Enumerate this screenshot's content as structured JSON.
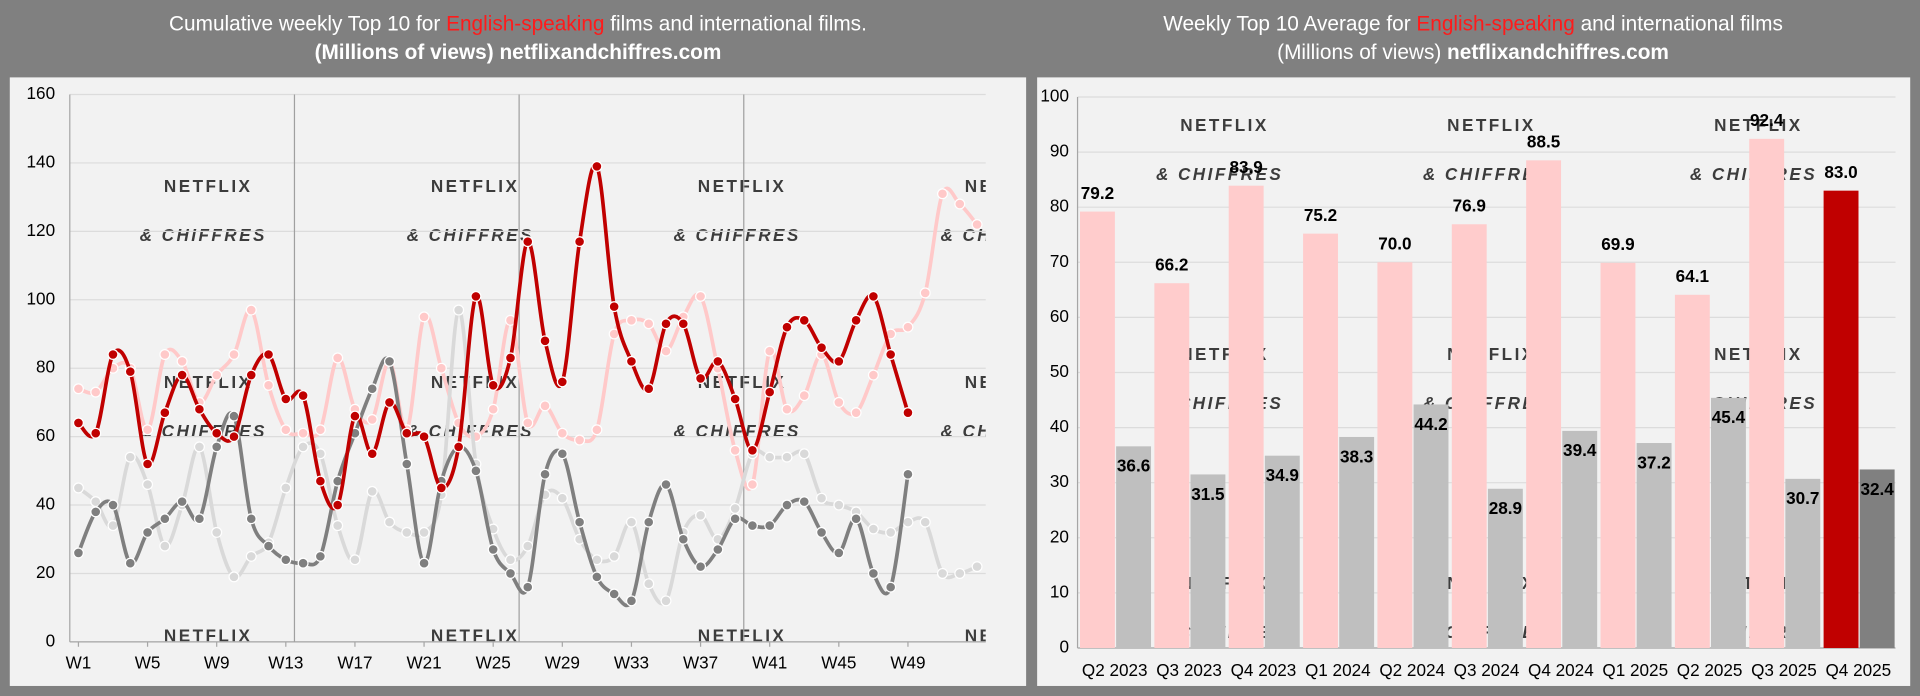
{
  "chart_data": [
    {
      "type": "line",
      "title": [
        "Cumulative weekly Top 10 for ",
        "English-speaking",
        " films and international films."
      ],
      "subtitle": [
        "(Millions of views) ",
        "netflixandchiffres.com"
      ],
      "subtitle_bold": [
        true,
        true
      ],
      "watermark": [
        "NETFLIX",
        "& CHIFFRES"
      ],
      "categories": [
        "W1",
        null,
        null,
        null,
        "W5",
        null,
        null,
        null,
        "W9",
        null,
        null,
        null,
        "W13",
        null,
        null,
        null,
        "W17",
        null,
        null,
        null,
        "W21",
        null,
        null,
        null,
        "W25",
        null,
        null,
        null,
        "W29",
        null,
        null,
        null,
        "W33",
        null,
        null,
        null,
        "W37",
        null,
        null,
        null,
        "W41",
        null,
        null,
        null,
        "W45",
        null,
        null,
        null,
        "W49",
        null,
        null,
        null,
        null
      ],
      "series": [
        {
          "color": "#ffc9c9",
          "values": [
            74,
            73,
            80,
            80,
            62,
            84,
            82,
            70,
            78,
            84,
            97,
            75,
            62,
            61,
            62,
            83,
            68,
            65,
            82,
            62,
            95,
            80,
            64,
            60,
            68,
            94,
            64,
            69,
            61,
            59,
            62,
            90,
            94,
            93,
            85,
            95,
            101,
            80,
            56,
            46,
            85,
            68,
            72,
            84,
            70,
            67,
            78,
            90,
            92,
            102,
            131,
            128,
            122
          ]
        },
        {
          "color": "#d9d9d9",
          "values": [
            45,
            41,
            34,
            54,
            46,
            28,
            40,
            57,
            32,
            19,
            25,
            29,
            45,
            57,
            55,
            34,
            24,
            44,
            35,
            32,
            32,
            43,
            97,
            52,
            33,
            24,
            28,
            43,
            42,
            30,
            24,
            25,
            35,
            17,
            12,
            32,
            37,
            30,
            39,
            55,
            54,
            54,
            55,
            42,
            40,
            38,
            33,
            32,
            35,
            35,
            20,
            20,
            22
          ]
        },
        {
          "color": "#7f7f7f",
          "values": [
            26,
            38,
            40,
            23,
            32,
            36,
            41,
            36,
            57,
            66,
            36,
            28,
            24,
            23,
            25,
            47,
            61,
            74,
            82,
            52,
            23,
            47,
            57,
            50,
            27,
            20,
            16,
            49,
            55,
            35,
            19,
            14,
            12,
            35,
            46,
            30,
            22,
            27,
            36,
            34,
            34,
            40,
            41,
            32,
            26,
            36,
            20,
            16,
            49,
            null,
            null,
            null,
            null
          ]
        },
        {
          "color": "#c00000",
          "values": [
            64,
            61,
            84,
            79,
            52,
            67,
            78,
            68,
            61,
            60,
            78,
            84,
            71,
            72,
            47,
            40,
            66,
            55,
            70,
            61,
            60,
            45,
            57,
            101,
            75,
            83,
            117,
            88,
            76,
            117,
            139,
            98,
            82,
            74,
            93,
            93,
            77,
            82,
            71,
            56,
            73,
            92,
            94,
            86,
            82,
            94,
            101,
            84,
            67,
            null,
            null,
            null,
            null
          ]
        }
      ],
      "ylim": [
        0,
        160
      ],
      "yticks": [
        0,
        20,
        40,
        60,
        80,
        100,
        120,
        140,
        160
      ],
      "grid": true
    },
    {
      "type": "bar",
      "title": [
        "Weekly Top 10 Average for ",
        "English-speaking",
        " and international films"
      ],
      "subtitle": [
        "(Millions of views) ",
        "netflixandchiffres.com"
      ],
      "subtitle_bold": [
        false,
        true
      ],
      "watermark": [
        "NETFLIX",
        "& CHIFFRES"
      ],
      "categories": [
        "Q2 2023",
        "Q3 2023",
        "Q4 2023",
        "Q1 2024",
        "Q2 2024",
        "Q3 2024",
        "Q4 2024",
        "Q1 2025",
        "Q2 2025",
        "Q3 2025",
        "Q4 2025"
      ],
      "series": [
        {
          "colors": [
            "#ffcccc",
            "#ffcccc",
            "#ffcccc",
            "#ffcccc",
            "#ffcccc",
            "#ffcccc",
            "#ffcccc",
            "#ffcccc",
            "#ffcccc",
            "#ffcccc",
            "#c00000"
          ],
          "label_colors": [
            "#000",
            "#000",
            "#000",
            "#000",
            "#000",
            "#000",
            "#000",
            "#000",
            "#000",
            "#000",
            "#c00000"
          ],
          "values": [
            79.2,
            66.2,
            83.9,
            75.2,
            70.0,
            76.9,
            88.5,
            69.9,
            64.1,
            92.4,
            83.0
          ],
          "value_labels": [
            "79.2",
            "66.2",
            "83.9",
            "75.2",
            "70.0",
            "76.9",
            "88.5",
            "69.9",
            "64.1",
            "92.4",
            "83.0"
          ]
        },
        {
          "colors": [
            "#bfbfbf",
            "#bfbfbf",
            "#bfbfbf",
            "#bfbfbf",
            "#bfbfbf",
            "#bfbfbf",
            "#bfbfbf",
            "#bfbfbf",
            "#bfbfbf",
            "#bfbfbf",
            "#808080"
          ],
          "label_colors": [
            "#000",
            "#000",
            "#000",
            "#000",
            "#000",
            "#000",
            "#000",
            "#000",
            "#000",
            "#000",
            "#fff"
          ],
          "values": [
            36.6,
            31.5,
            34.9,
            38.3,
            44.2,
            28.9,
            39.4,
            37.2,
            45.4,
            30.7,
            32.4
          ],
          "value_labels": [
            "36.6",
            "31.5",
            "34.9",
            "38.3",
            "44.2",
            "28.9",
            "39.4",
            "37.2",
            "45.4",
            "30.7",
            "32.4"
          ]
        }
      ],
      "ylim": [
        0,
        100
      ],
      "yticks": [
        0,
        10,
        20,
        30,
        40,
        50,
        60,
        70,
        80,
        90,
        100
      ],
      "grid": true
    }
  ]
}
